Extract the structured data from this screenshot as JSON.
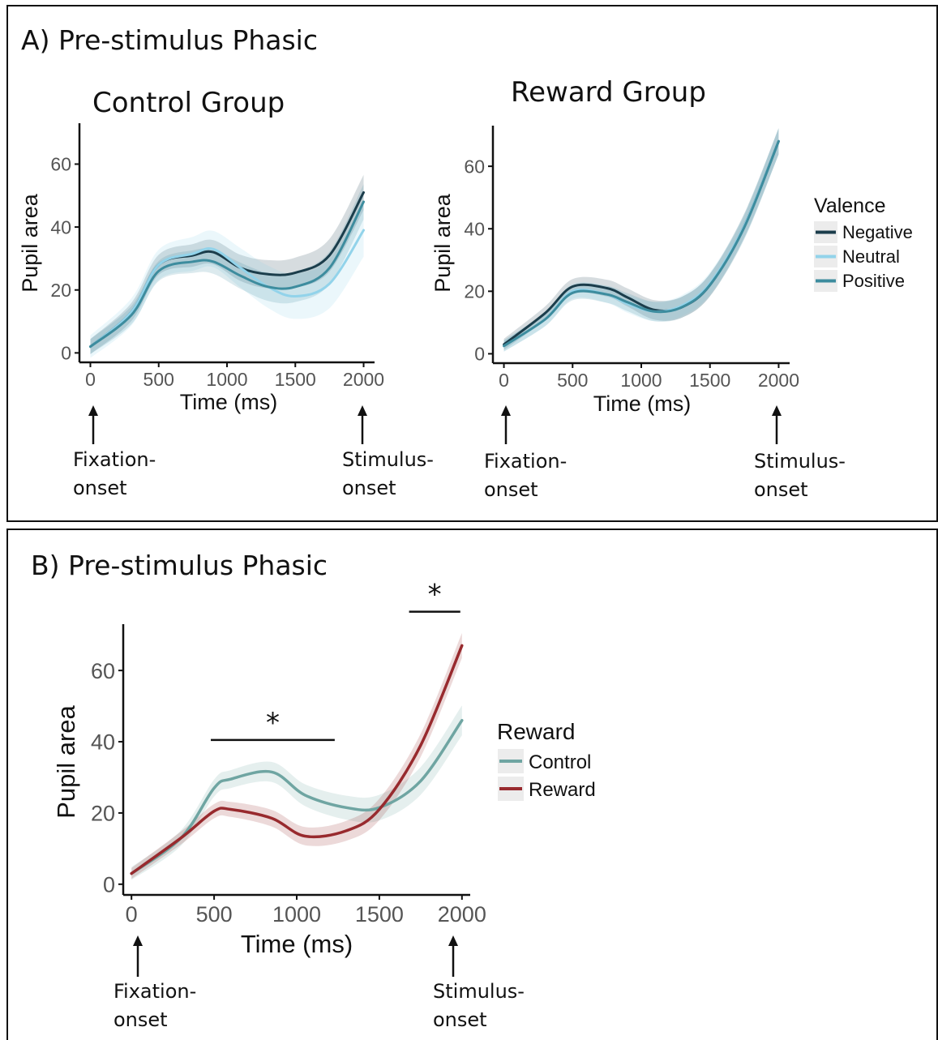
{
  "panel_a": {
    "title": "A) Pre-stimulus Phasic",
    "annotations": {
      "left": {
        "line1": "Fixation-",
        "line2": "onset"
      },
      "right": {
        "line1": "Stimulus-",
        "line2": "onset"
      }
    }
  },
  "panel_b": {
    "title": "B) Pre-stimulus Phasic",
    "significance_marker": "*",
    "annotations": {
      "left": {
        "line1": "Fixation-",
        "line2": "onset"
      },
      "right": {
        "line1": "Stimulus-",
        "line2": "onset"
      }
    }
  },
  "colors": {
    "negative": "#1b3d4b",
    "neutral": "#92d3ea",
    "positive": "#3d8c9e",
    "control": "#6fa5a2",
    "reward": "#982a2e",
    "axis": "#111111",
    "tick_label": "#555555"
  },
  "chart_data": [
    {
      "type": "line",
      "title": "Control Group",
      "xlabel": "Time (ms)",
      "ylabel": "Pupil area",
      "xlim": [
        -80,
        2080
      ],
      "ylim": [
        -3,
        73
      ],
      "xticks": [
        0,
        500,
        1000,
        1500,
        2000
      ],
      "yticks": [
        0,
        20,
        40,
        60
      ],
      "grid": false,
      "legend": null,
      "x": [
        0,
        300,
        500,
        750,
        900,
        1100,
        1300,
        1500,
        1750,
        2000
      ],
      "series": [
        {
          "name": "Negative",
          "color": "#1b3d4b",
          "band": 4,
          "values": [
            2,
            13,
            28,
            31,
            32,
            27,
            25,
            25.5,
            31,
            51
          ]
        },
        {
          "name": "Neutral",
          "color": "#92d3ea",
          "band": 6,
          "values": [
            2,
            13,
            28,
            31.5,
            33,
            27,
            21,
            18,
            22,
            39
          ]
        },
        {
          "name": "Positive",
          "color": "#3d8c9e",
          "band": 4,
          "values": [
            2,
            12,
            26,
            29,
            29,
            24.5,
            21,
            21,
            27,
            48
          ]
        }
      ]
    },
    {
      "type": "line",
      "title": "Reward Group",
      "xlabel": "Time (ms)",
      "ylabel": "Pupil area",
      "xlim": [
        -80,
        2080
      ],
      "ylim": [
        -3,
        73
      ],
      "xticks": [
        0,
        500,
        1000,
        1500,
        2000
      ],
      "yticks": [
        0,
        20,
        40,
        60
      ],
      "grid": false,
      "legend": {
        "title": "Valence",
        "position": "right",
        "entries": [
          "Negative",
          "Neutral",
          "Positive"
        ]
      },
      "x": [
        0,
        300,
        500,
        750,
        900,
        1100,
        1300,
        1500,
        1750,
        2000
      ],
      "series": [
        {
          "name": "Negative",
          "color": "#1b3d4b",
          "band": 3,
          "values": [
            3,
            13,
            21.5,
            21,
            18,
            14,
            15,
            22,
            41,
            68
          ]
        },
        {
          "name": "Neutral",
          "color": "#92d3ea",
          "band": 3,
          "values": [
            2.5,
            11,
            20,
            19,
            16,
            13.5,
            15.5,
            22.5,
            41,
            68
          ]
        },
        {
          "name": "Positive",
          "color": "#3d8c9e",
          "band": 3,
          "values": [
            2.5,
            11,
            19.5,
            19,
            16.5,
            13.5,
            15,
            22,
            40.5,
            68
          ]
        }
      ]
    },
    {
      "type": "line",
      "title": "",
      "xlabel": "Time (ms)",
      "ylabel": "Pupil area",
      "xlim": [
        -50,
        2050
      ],
      "ylim": [
        -3,
        73
      ],
      "xticks": [
        0,
        500,
        1000,
        1500,
        2000
      ],
      "yticks": [
        0,
        20,
        40,
        60
      ],
      "grid": false,
      "legend": {
        "title": "Reward",
        "position": "right",
        "entries": [
          "Control",
          "Reward"
        ]
      },
      "significance": [
        {
          "x_start": 480,
          "x_end": 1230,
          "y": 40.5,
          "label": "*"
        },
        {
          "x_start": 1680,
          "x_end": 1990,
          "y": 76.5,
          "label": "*"
        }
      ],
      "x": [
        0,
        300,
        500,
        600,
        850,
        1050,
        1300,
        1500,
        1750,
        2000
      ],
      "series": [
        {
          "name": "Control",
          "color": "#6fa5a2",
          "band": 3,
          "values": [
            3,
            13,
            27,
            29.5,
            31.5,
            25,
            21.5,
            21.5,
            29,
            46
          ]
        },
        {
          "name": "Reward",
          "color": "#982a2e",
          "band": 2.5,
          "values": [
            3,
            13,
            20.5,
            21,
            18.5,
            13.5,
            15,
            21,
            39,
            67
          ]
        }
      ]
    }
  ]
}
